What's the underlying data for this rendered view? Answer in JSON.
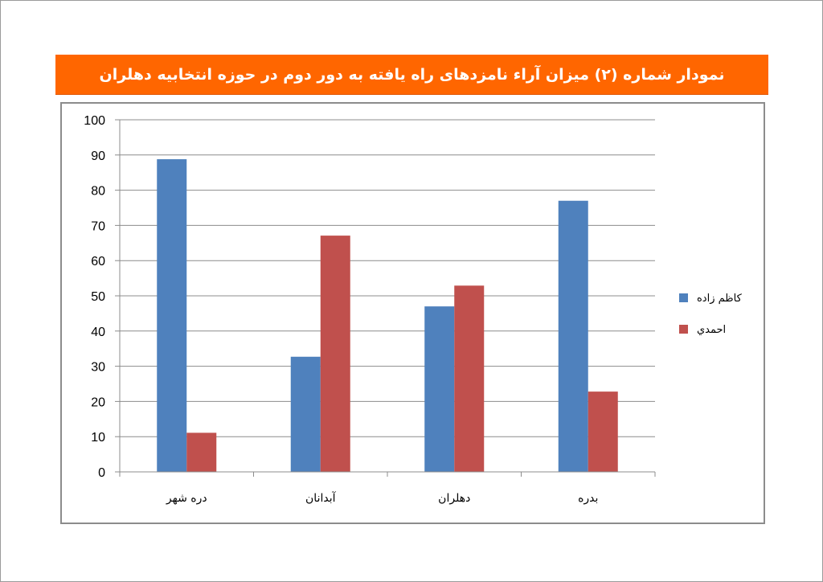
{
  "chart_data": {
    "type": "bar",
    "title": "نمودار شماره (۲) میزان آراء نامزدهای راه یافته به دور دوم در حوزه انتخابیه دهلران",
    "categories": [
      "دره شهر",
      "آبدانان",
      "دهلران",
      "بدره"
    ],
    "series": [
      {
        "name": "کاظم زاده",
        "color": "#4f81bd",
        "values": [
          88.8,
          32.7,
          47,
          77
        ]
      },
      {
        "name": "احمدي",
        "color": "#c0504d",
        "values": [
          11.1,
          67.1,
          52.9,
          22.8
        ]
      }
    ],
    "ylim": [
      0,
      100
    ],
    "yticks": [
      0,
      10,
      20,
      30,
      40,
      50,
      60,
      70,
      80,
      90,
      100
    ],
    "grid": true,
    "legend_position": "right",
    "banner_color": "#ff6600"
  }
}
